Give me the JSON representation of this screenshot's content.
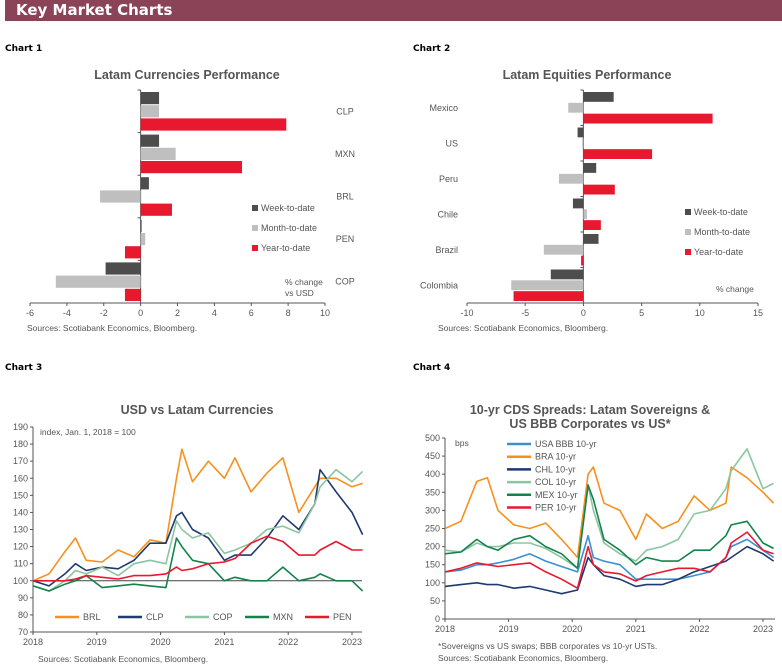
{
  "header": {
    "title": "Key Market Charts",
    "color": "#8b4358"
  },
  "chart_data": [
    {
      "id": "chart1",
      "label": "Chart 1",
      "type": "bar",
      "orientation": "horizontal",
      "title": "Latam Currencies Performance",
      "categories": [
        "CLP",
        "MXN",
        "BRL",
        "PEN",
        "COP"
      ],
      "series": [
        {
          "name": "Week-to-date",
          "color": "#4d4d4d",
          "values": [
            1.0,
            1.0,
            0.45,
            0.05,
            -1.9
          ]
        },
        {
          "name": "Month-to-date",
          "color": "#bfbfbf",
          "values": [
            1.0,
            1.9,
            -2.2,
            0.25,
            -4.6
          ]
        },
        {
          "name": "Year-to-date",
          "color": "#e8182f",
          "values": [
            7.9,
            5.5,
            1.7,
            -0.85,
            -0.85
          ]
        }
      ],
      "xlim": [
        -6,
        10
      ],
      "xticks": [
        "-6",
        "-4",
        "-2",
        "0",
        "2",
        "4",
        "6",
        "8",
        "10"
      ],
      "unit_note": [
        "% change",
        "vs USD"
      ],
      "legend": "right",
      "source": "Sources: Scotiabank Economics, Bloomberg."
    },
    {
      "id": "chart2",
      "label": "Chart 2",
      "type": "bar",
      "orientation": "horizontal",
      "title": "Latam Equities Performance",
      "categories": [
        "Mexico",
        "US",
        "Peru",
        "Chile",
        "Brazil",
        "Colombia"
      ],
      "series": [
        {
          "name": "Week-to-date",
          "color": "#4d4d4d",
          "values": [
            2.6,
            -0.5,
            1.1,
            -0.9,
            1.3,
            -2.8
          ]
        },
        {
          "name": "Month-to-date",
          "color": "#bfbfbf",
          "values": [
            -1.3,
            -0.1,
            -2.1,
            0.3,
            -3.4,
            -6.2
          ]
        },
        {
          "name": "Year-to-date",
          "color": "#e8182f",
          "values": [
            11.1,
            5.9,
            2.7,
            1.5,
            -0.2,
            -6.0
          ]
        }
      ],
      "xlim": [
        -10,
        15
      ],
      "xticks": [
        "-10",
        "-5",
        "0",
        "5",
        "10",
        "15"
      ],
      "unit_note": [
        "% change"
      ],
      "legend": "right",
      "source": "Sources: Scotiabank Economics, Bloomberg."
    },
    {
      "id": "chart3",
      "label": "Chart 3",
      "type": "line",
      "title": "USD vs Latam Currencies",
      "ylabel": "index, Jan. 1, 2018 = 100",
      "ylim": [
        70,
        190
      ],
      "yticks": [
        "70",
        "80",
        "90",
        "100",
        "110",
        "120",
        "130",
        "140",
        "150",
        "160",
        "170",
        "180",
        "190"
      ],
      "xticks": [
        "2018",
        "2019",
        "2020",
        "2021",
        "2022",
        "2023"
      ],
      "reference_line": 100,
      "x": [
        "2018-01",
        "2018-04",
        "2018-07",
        "2018-09",
        "2018-11",
        "2019-02",
        "2019-05",
        "2019-08",
        "2019-11",
        "2020-02",
        "2020-04",
        "2020-05",
        "2020-07",
        "2020-10",
        "2021-01",
        "2021-03",
        "2021-06",
        "2021-09",
        "2021-12",
        "2022-03",
        "2022-06",
        "2022-07",
        "2022-10",
        "2023-01",
        "2023-03"
      ],
      "series": [
        {
          "name": "BRL",
          "color": "#f7901e",
          "values": [
            100,
            104,
            117,
            125,
            112,
            111,
            118,
            114,
            124,
            122,
            160,
            177,
            158,
            170,
            160,
            172,
            152,
            163,
            172,
            140,
            155,
            160,
            160,
            155,
            157
          ]
        },
        {
          "name": "CLP",
          "color": "#1f3a6e",
          "values": [
            100,
            97,
            104,
            110,
            106,
            108,
            107,
            112,
            122,
            122,
            138,
            140,
            130,
            125,
            112,
            115,
            115,
            125,
            138,
            130,
            145,
            165,
            152,
            140,
            127
          ]
        },
        {
          "name": "COP",
          "color": "#8cc5a0",
          "values": [
            97,
            94,
            100,
            106,
            104,
            108,
            103,
            110,
            112,
            110,
            135,
            130,
            125,
            128,
            116,
            118,
            122,
            130,
            132,
            128,
            145,
            155,
            165,
            158,
            164
          ]
        },
        {
          "name": "MXN",
          "color": "#13834a",
          "values": [
            97,
            94,
            98,
            100,
            103,
            96,
            97,
            98,
            97,
            96,
            125,
            120,
            112,
            110,
            100,
            102,
            100,
            100,
            108,
            100,
            102,
            104,
            100,
            100,
            94
          ]
        },
        {
          "name": "PEN",
          "color": "#e8182f",
          "values": [
            100,
            100,
            100,
            101,
            103,
            102,
            101,
            103,
            103,
            104,
            108,
            106,
            107,
            110,
            111,
            113,
            122,
            126,
            123,
            115,
            115,
            118,
            123,
            118,
            118
          ]
        }
      ],
      "legend": "bottom",
      "source": "Sources: Scotiabank Economics, Bloomberg."
    },
    {
      "id": "chart4",
      "label": "Chart 4",
      "type": "line",
      "title": [
        "10-yr CDS Spreads: Latam Sovereigns &",
        "US BBB Corporates vs US*"
      ],
      "ylabel": "bps",
      "ylim": [
        0,
        500
      ],
      "yticks": [
        "0",
        "50",
        "100",
        "150",
        "200",
        "250",
        "300",
        "350",
        "400",
        "450",
        "500"
      ],
      "xticks": [
        "2018",
        "2019",
        "2020",
        "2021",
        "2022",
        "2023"
      ],
      "x": [
        "2018-01",
        "2018-04",
        "2018-07",
        "2018-09",
        "2018-11",
        "2019-02",
        "2019-05",
        "2019-08",
        "2019-11",
        "2020-02",
        "2020-04",
        "2020-05",
        "2020-07",
        "2020-10",
        "2021-01",
        "2021-03",
        "2021-06",
        "2021-09",
        "2021-12",
        "2022-03",
        "2022-06",
        "2022-07",
        "2022-10",
        "2023-01",
        "2023-03"
      ],
      "series": [
        {
          "name": "USA BBB 10-yr",
          "color": "#3b8fd4",
          "values": [
            130,
            135,
            150,
            150,
            155,
            165,
            180,
            160,
            145,
            130,
            230,
            170,
            160,
            150,
            110,
            110,
            110,
            110,
            120,
            130,
            170,
            200,
            220,
            190,
            170
          ]
        },
        {
          "name": "BRA 10-yr",
          "color": "#f7901e",
          "values": [
            250,
            270,
            380,
            390,
            300,
            260,
            250,
            265,
            220,
            170,
            400,
            420,
            320,
            300,
            220,
            290,
            250,
            270,
            340,
            300,
            320,
            420,
            390,
            350,
            320
          ]
        },
        {
          "name": "CHL 10-yr",
          "color": "#1f3a6e",
          "values": [
            90,
            95,
            100,
            95,
            95,
            85,
            90,
            80,
            70,
            80,
            170,
            150,
            120,
            110,
            90,
            95,
            95,
            110,
            130,
            145,
            160,
            170,
            200,
            180,
            160
          ]
        },
        {
          "name": "COL 10-yr",
          "color": "#8cc5a0",
          "values": [
            190,
            185,
            210,
            200,
            200,
            210,
            210,
            195,
            170,
            140,
            370,
            300,
            210,
            180,
            160,
            190,
            200,
            220,
            290,
            300,
            360,
            410,
            470,
            360,
            375
          ]
        },
        {
          "name": "MEX 10-yr",
          "color": "#13834a",
          "values": [
            180,
            185,
            220,
            200,
            190,
            220,
            230,
            200,
            180,
            140,
            370,
            330,
            220,
            190,
            150,
            170,
            160,
            160,
            190,
            190,
            230,
            260,
            270,
            210,
            195
          ]
        },
        {
          "name": "PER 10-yr",
          "color": "#e8182f",
          "values": [
            130,
            140,
            155,
            150,
            145,
            150,
            155,
            130,
            110,
            85,
            200,
            150,
            130,
            125,
            105,
            120,
            130,
            140,
            140,
            130,
            170,
            210,
            240,
            190,
            180
          ]
        }
      ],
      "legend": "top-left",
      "footnote": "*Sovereigns vs US swaps; BBB corporates vs 10-yr USTs.",
      "source": "Sources: Scotiabank Economics, Bloomberg."
    }
  ]
}
